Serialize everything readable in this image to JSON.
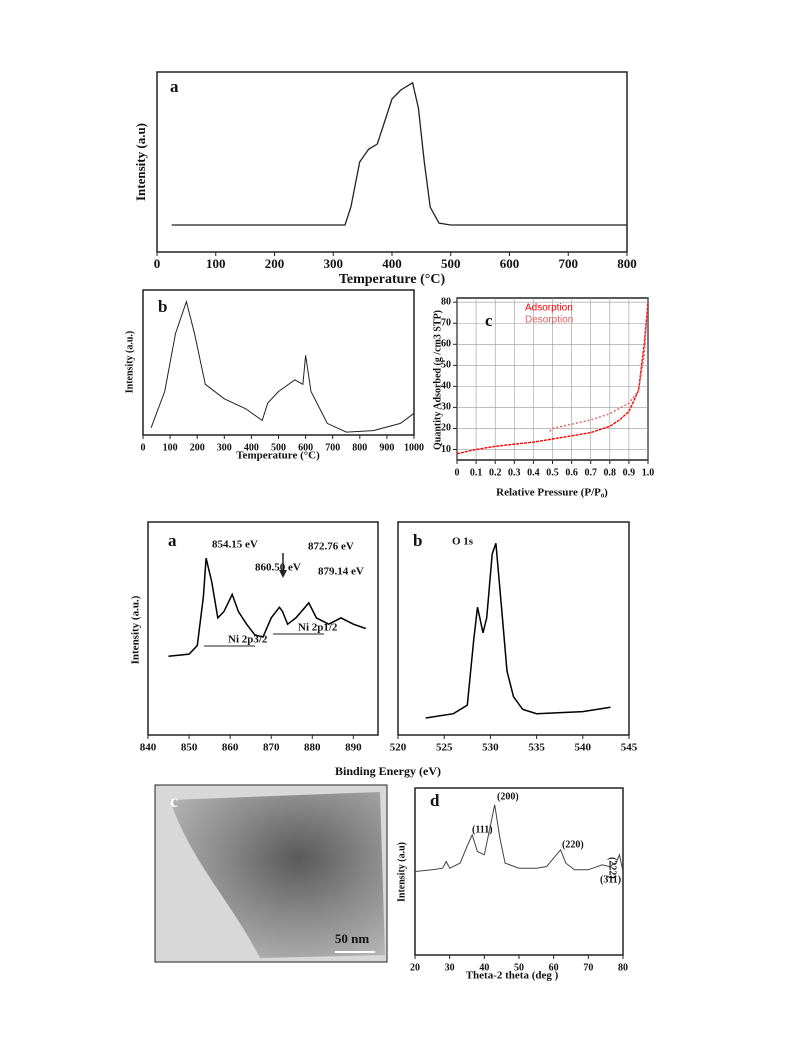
{
  "chart_data": [
    {
      "type": "line",
      "panel_label": "a",
      "x_label": "Temperature (°C)",
      "y_label": "Intensity (a.u)",
      "xlim": [
        0,
        800
      ],
      "xticks": [
        0,
        100,
        200,
        300,
        400,
        500,
        600,
        700,
        800
      ],
      "ylim": [
        0,
        100
      ],
      "series": [
        {
          "color": "#222222",
          "x": [
            25,
            320,
            330,
            345,
            360,
            375,
            385,
            400,
            415,
            435,
            445,
            455,
            465,
            480,
            500,
            800
          ],
          "values": [
            15,
            15,
            25,
            50,
            57,
            60,
            70,
            85,
            90,
            94,
            80,
            50,
            25,
            16,
            15,
            15
          ]
        }
      ]
    },
    {
      "type": "line",
      "panel_label": "b",
      "x_label": "Temperature (°C)",
      "y_label": "Intensity (a.u.)",
      "xlim": [
        0,
        1000
      ],
      "xticks": [
        0,
        100,
        200,
        300,
        400,
        500,
        600,
        700,
        800,
        900,
        1000
      ],
      "ylim": [
        0,
        100
      ],
      "series": [
        {
          "color": "#222222",
          "x": [
            30,
            80,
            120,
            160,
            190,
            230,
            300,
            380,
            440,
            460,
            500,
            560,
            590,
            600,
            620,
            680,
            750,
            850,
            950,
            1000
          ],
          "values": [
            5,
            30,
            70,
            92,
            70,
            35,
            25,
            18,
            10,
            22,
            30,
            38,
            35,
            55,
            30,
            8,
            2,
            3,
            8,
            15
          ]
        }
      ]
    },
    {
      "type": "line",
      "panel_label": "c",
      "x_label": "Relative Pressure (P/P₀)",
      "y_label": "Quantity Adsorbed (g /cm3 STP)",
      "xlim": [
        0,
        1.0
      ],
      "xticks": [
        0,
        0.1,
        0.2,
        0.3,
        0.4,
        0.5,
        0.6,
        0.7,
        0.8,
        0.9,
        {
          "value": 1.0,
          "label": "1.0"
        }
      ],
      "ylim": [
        5,
        82
      ],
      "yticks": [
        10,
        20,
        30,
        40,
        50,
        60,
        70,
        80
      ],
      "grid": true,
      "series": [
        {
          "name": "Adsorption",
          "color": "#ff0000",
          "x": [
            0,
            0.1,
            0.2,
            0.3,
            0.4,
            0.5,
            0.6,
            0.7,
            0.8,
            0.85,
            0.9,
            0.95,
            0.98,
            1.0
          ],
          "values": [
            8,
            10,
            11.5,
            12.5,
            13.5,
            15,
            16.5,
            18,
            21,
            24,
            28,
            38,
            60,
            80
          ]
        },
        {
          "name": "Desorption",
          "color": "#e06060",
          "x": [
            1.0,
            0.98,
            0.95,
            0.9,
            0.8,
            0.7,
            0.6,
            0.5,
            0.48
          ],
          "values": [
            80,
            55,
            38,
            32,
            27,
            24,
            22,
            20,
            18
          ]
        }
      ]
    },
    {
      "type": "line",
      "panel_label": "a",
      "x_label": "Binding Energy (eV)",
      "y_label": "Intensity (a.u.)",
      "xlim": [
        840,
        896
      ],
      "xticks": [
        840,
        850,
        860,
        870,
        880,
        890
      ],
      "ylim": [
        0,
        100
      ],
      "annotations": [
        "854.15 eV",
        "860.50 eV",
        "872.76 eV",
        "879.14 eV",
        "Ni 2p3/2",
        "Ni 2p1/2"
      ],
      "series": [
        {
          "color": "#000000",
          "x": [
            845,
            850,
            852,
            853.5,
            854.15,
            855.5,
            857,
            858.5,
            860.5,
            862,
            864,
            866,
            868,
            870,
            872,
            872.76,
            874,
            876,
            879.14,
            881,
            884,
            887,
            890,
            893
          ],
          "values": [
            37,
            38,
            42,
            65,
            83,
            72,
            55,
            58,
            66,
            58,
            52,
            47,
            46,
            55,
            60,
            58,
            52,
            55,
            62,
            55,
            52,
            55,
            52,
            50
          ]
        }
      ]
    },
    {
      "type": "line",
      "panel_label": "b",
      "xlim": [
        520,
        545
      ],
      "xticks": [
        520,
        525,
        530,
        535,
        540,
        545
      ],
      "ylim": [
        0,
        100
      ],
      "annotations": [
        "O 1s"
      ],
      "series": [
        {
          "color": "#000000",
          "x": [
            523,
            526,
            527.5,
            528.2,
            528.6,
            529.2,
            529.6,
            530.2,
            530.6,
            531.2,
            531.8,
            532.5,
            533.5,
            535,
            540,
            543
          ],
          "values": [
            8,
            10,
            14,
            45,
            60,
            48,
            55,
            85,
            90,
            60,
            30,
            18,
            12,
            10,
            11,
            13
          ]
        }
      ]
    },
    {
      "type": "line",
      "panel_label": "d",
      "x_label": "Theta-2 theta (deg )",
      "y_label": "Intensity (a.u)",
      "xlim": [
        20,
        80
      ],
      "xticks": [
        20,
        30,
        40,
        50,
        60,
        70,
        80
      ],
      "ylim": [
        0,
        100
      ],
      "annotations": [
        "(111)",
        "(200)",
        "(220)",
        "(311)",
        "(222)"
      ],
      "series": [
        {
          "color": "#444444",
          "x": [
            20,
            25,
            28,
            29,
            30,
            33,
            35,
            36.5,
            38,
            40,
            42,
            43,
            44.5,
            46,
            50,
            55,
            58,
            60,
            62,
            63.5,
            66,
            70,
            74,
            76,
            78,
            79,
            80
          ],
          "values": [
            50,
            51,
            52,
            56,
            52,
            55,
            65,
            72,
            62,
            60,
            80,
            90,
            70,
            55,
            52,
            52,
            53,
            58,
            63,
            55,
            51,
            51,
            54,
            53,
            55,
            60,
            50
          ]
        }
      ]
    }
  ],
  "image": {
    "panel_label": "c",
    "scale_bar": "50 nm"
  }
}
